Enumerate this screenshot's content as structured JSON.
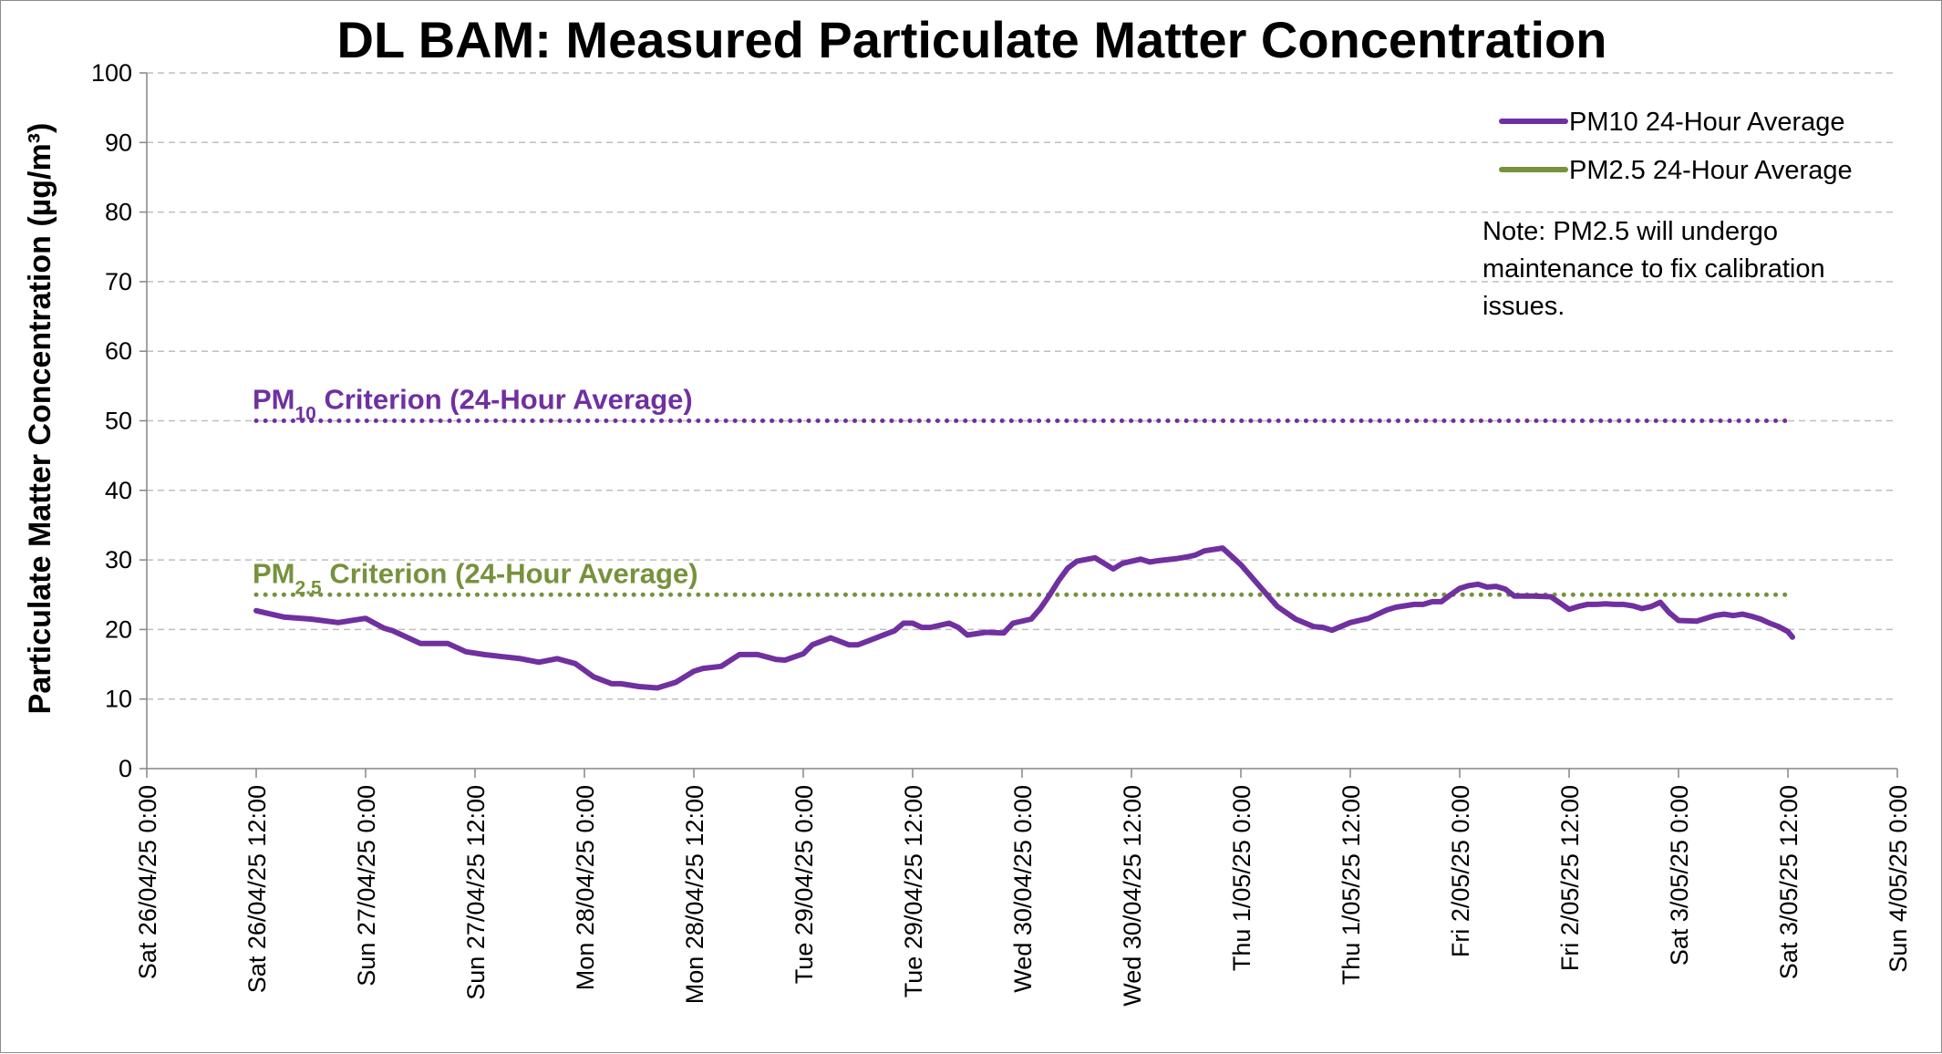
{
  "chart_data": {
    "type": "line",
    "title": "DL BAM: Measured Particulate Matter Concentration",
    "ylabel": "Particulate Matter Concentration (µg/m³)",
    "xlabel": "",
    "ylim": [
      0,
      100
    ],
    "yticks": [
      0,
      10,
      20,
      30,
      40,
      50,
      60,
      70,
      80,
      90,
      100
    ],
    "grid": "horizontal dashed",
    "legend_position": "top-right",
    "x_tick_labels": [
      "Sat 26/04/25 0:00",
      "Sat 26/04/25 12:00",
      "Sun 27/04/25 0:00",
      "Sun 27/04/25 12:00",
      "Mon 28/04/25 0:00",
      "Mon 28/04/25 12:00",
      "Tue 29/04/25 0:00",
      "Tue 29/04/25 12:00",
      "Wed 30/04/25 0:00",
      "Wed 30/04/25 12:00",
      "Thu 1/05/25 0:00",
      "Thu 1/05/25 12:00",
      "Fri 2/05/25 0:00",
      "Fri 2/05/25 12:00",
      "Sat 3/05/25 0:00",
      "Sat 3/05/25 12:00",
      "Sun 4/05/25 0:00"
    ],
    "x_tick_hours": [
      0,
      12,
      24,
      36,
      48,
      60,
      72,
      84,
      96,
      108,
      120,
      132,
      144,
      156,
      168,
      180,
      192
    ],
    "x_unit": "hours since Sat 26/04/25 0:00",
    "series": [
      {
        "name": "PM10 24-Hour Average",
        "color": "#7030a0",
        "style": "solid",
        "x": [
          12,
          15,
          18,
          21,
          24,
          26,
          27,
          30,
          33,
          35,
          37,
          39,
          41,
          43,
          45,
          47,
          49,
          51,
          52,
          54,
          56,
          58,
          59,
          60,
          61,
          63,
          65,
          67,
          69,
          70,
          72,
          73,
          75,
          77,
          78,
          79,
          81,
          82,
          83,
          84,
          85,
          86,
          88,
          89,
          90,
          91,
          92,
          94,
          95,
          97,
          98,
          99,
          100,
          101,
          102,
          104,
          106,
          107,
          108,
          109,
          110,
          111,
          113,
          114,
          115,
          116,
          118,
          120,
          122,
          124,
          126,
          128,
          129,
          130,
          132,
          134,
          136,
          137,
          139,
          140,
          141,
          142,
          143,
          144,
          145,
          146,
          147,
          148,
          149,
          150,
          152,
          154,
          156,
          157,
          158,
          159,
          160,
          161,
          162,
          163,
          164,
          165,
          166,
          167,
          168,
          170,
          172,
          173,
          174,
          175,
          176,
          177,
          178,
          179,
          180,
          180.5
        ],
        "values": [
          22.7,
          21.8,
          21.5,
          21.0,
          21.6,
          20.2,
          19.8,
          18.0,
          18.0,
          16.8,
          16.4,
          16.1,
          15.8,
          15.3,
          15.8,
          15.1,
          13.2,
          12.2,
          12.2,
          11.8,
          11.6,
          12.4,
          13.2,
          14.0,
          14.4,
          14.7,
          16.4,
          16.4,
          15.7,
          15.6,
          16.5,
          17.8,
          18.8,
          17.8,
          17.8,
          18.3,
          19.3,
          19.8,
          20.9,
          20.9,
          20.3,
          20.3,
          20.9,
          20.3,
          19.2,
          19.4,
          19.6,
          19.5,
          20.9,
          21.5,
          23.0,
          24.9,
          27.0,
          28.8,
          29.8,
          30.3,
          28.7,
          29.5,
          29.8,
          30.1,
          29.7,
          29.9,
          30.2,
          30.4,
          30.7,
          31.3,
          31.7,
          29.3,
          26.3,
          23.3,
          21.5,
          20.4,
          20.3,
          19.9,
          21.0,
          21.6,
          22.8,
          23.2,
          23.6,
          23.6,
          24.0,
          24.0,
          25.0,
          25.9,
          26.3,
          26.5,
          26.1,
          26.2,
          25.8,
          24.8,
          24.8,
          24.7,
          22.9,
          23.3,
          23.6,
          23.6,
          23.7,
          23.6,
          23.6,
          23.4,
          23.0,
          23.3,
          23.9,
          22.4,
          21.3,
          21.2,
          22.0,
          22.2,
          22.0,
          22.2,
          21.9,
          21.5,
          20.9,
          20.4,
          19.7,
          18.9
        ]
      },
      {
        "name": "PM2.5 24-Hour Average",
        "color": "#76923c",
        "style": "solid",
        "x": [],
        "values": []
      }
    ],
    "criteria": [
      {
        "label_main": "PM",
        "label_sub": "10",
        "label_rest": " Criterion (24-Hour Average)",
        "value": 50,
        "x_start": 12,
        "x_end": 180,
        "color": "#7030a0"
      },
      {
        "label_main": "PM",
        "label_sub": "2.5",
        "label_rest": " Criterion (24-Hour Average)",
        "value": 25,
        "x_start": 12,
        "x_end": 180,
        "color": "#76923c"
      }
    ],
    "note": [
      "Note: PM2.5 will undergo",
      "maintenance to fix calibration",
      "issues."
    ]
  }
}
